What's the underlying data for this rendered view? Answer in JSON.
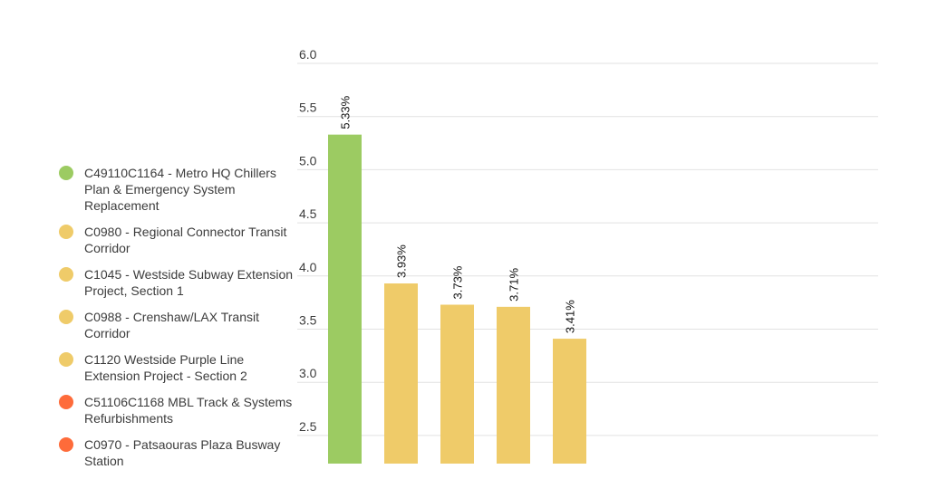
{
  "chart_data": {
    "type": "bar",
    "categories": [
      "C49110C1164 - Metro HQ Chillers Plan & Emergency System Replacement",
      "C0980 - Regional Connector Transit Corridor",
      "C1045 - Westside Subway Extension Project, Section 1",
      "C0988 - Crenshaw/LAX Transit Corridor",
      "C1120 Westside Purple Line Extension Project - Section 2"
    ],
    "values": [
      5.33,
      3.93,
      3.73,
      3.71,
      3.41
    ],
    "data_labels": [
      "5.33%",
      "3.93%",
      "3.73%",
      "3.71%",
      "3.41%"
    ],
    "bar_colors": [
      "#9ccb62",
      "#efcb69",
      "#efcb69",
      "#efcb69",
      "#efcb69"
    ],
    "y_ticks": [
      "6.0",
      "5.5",
      "5.0",
      "4.5",
      "4.0",
      "3.5",
      "3.0",
      "2.5"
    ],
    "ylim": [
      2.5,
      6.0
    ],
    "grid": true,
    "legend_position": "left",
    "legend": [
      {
        "label": "C49110C1164 - Metro HQ Chillers Plan & Emergency System Replacement",
        "color": "#9ccb62"
      },
      {
        "label": "C0980 - Regional Connector Transit Corridor",
        "color": "#efcb69"
      },
      {
        "label": "C1045 - Westside Subway Extension Project, Section 1",
        "color": "#efcb69"
      },
      {
        "label": "C0988 - Crenshaw/LAX Transit Corridor",
        "color": "#efcb69"
      },
      {
        "label": "C1120 Westside Purple Line Extension Project - Section 2",
        "color": "#efcb69"
      },
      {
        "label": "C51106C1168 MBL Track & Systems Refurbishments",
        "color": "#fe6b3a"
      },
      {
        "label": "C0970 - Patsaouras Plaza Busway Station",
        "color": "#fe6b3a"
      }
    ]
  }
}
